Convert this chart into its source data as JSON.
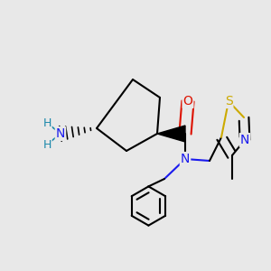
{
  "background_color": "#e8e8e8",
  "figure_size": [
    3.0,
    3.0
  ],
  "dpi": 100,
  "bond_width": 1.5,
  "colors": {
    "C": "#000000",
    "N": "#1a1aee",
    "O": "#dd1100",
    "S": "#ccaa00",
    "H": "#1a88aa"
  }
}
